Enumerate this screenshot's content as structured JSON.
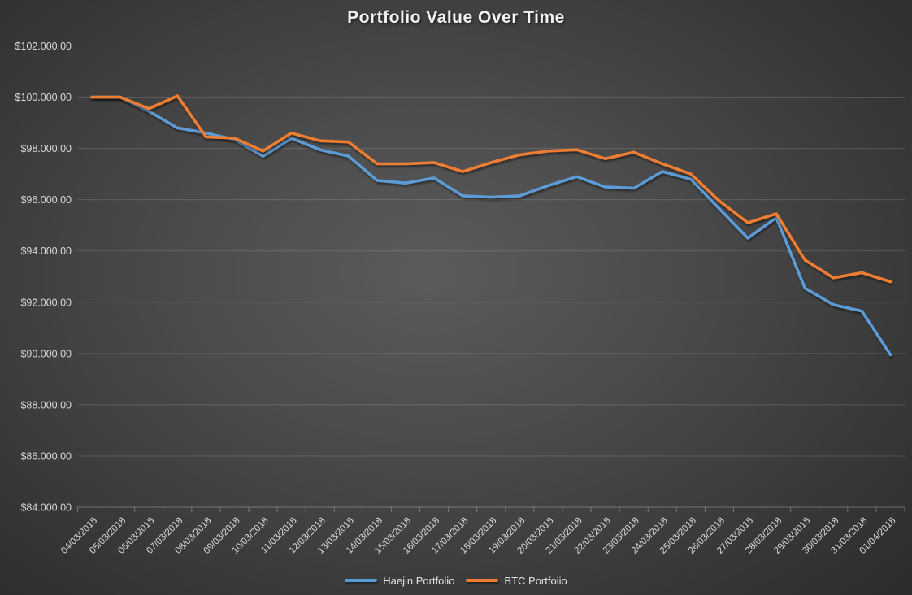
{
  "chart_data": {
    "type": "line",
    "title": "Portfolio Value Over Time",
    "x": [
      "04/03/2018",
      "05/03/2018",
      "06/03/2018",
      "07/03/2018",
      "08/03/2018",
      "09/03/2018",
      "10/03/2018",
      "11/03/2018",
      "12/03/2018",
      "13/03/2018",
      "14/03/2018",
      "15/03/2018",
      "16/03/2018",
      "17/03/2018",
      "18/03/2018",
      "19/03/2018",
      "20/03/2018",
      "21/03/2018",
      "22/03/2018",
      "23/03/2018",
      "24/03/2018",
      "25/03/2018",
      "26/03/2018",
      "27/03/2018",
      "28/03/2018",
      "29/03/2018",
      "30/03/2018",
      "31/03/2018",
      "01/04/2018"
    ],
    "series": [
      {
        "name": "Haejin Portfolio",
        "color": "#5B9BD5",
        "values": [
          100000,
          100000,
          99450,
          98800,
          98600,
          98350,
          97700,
          98400,
          97950,
          97700,
          96750,
          96650,
          96850,
          96150,
          96100,
          96150,
          96550,
          96900,
          96500,
          96450,
          97100,
          96800,
          95650,
          94500,
          95300,
          92550,
          91900,
          91650,
          89950
        ]
      },
      {
        "name": "BTC Portfolio",
        "color": "#ED7D31",
        "values": [
          100000,
          100000,
          99550,
          100050,
          98450,
          98400,
          97900,
          98600,
          98300,
          98250,
          97400,
          97400,
          97450,
          97100,
          97450,
          97750,
          97900,
          97950,
          97600,
          97850,
          97400,
          97000,
          95950,
          95100,
          95450,
          93650,
          92950,
          93150,
          92800
        ]
      }
    ],
    "y_ticks": {
      "values": [
        84000,
        86000,
        88000,
        90000,
        92000,
        94000,
        96000,
        98000,
        100000,
        102000
      ],
      "labels": [
        "$84.000,00",
        "$86.000,00",
        "$88.000,00",
        "$90.000,00",
        "$92.000,00",
        "$94.000,00",
        "$96.000,00",
        "$98.000,00",
        "$100.000,00",
        "$102.000,00"
      ]
    },
    "ylim": [
      84000,
      102000
    ],
    "xlabel": "",
    "ylabel": "",
    "grid": true,
    "legend_position": "bottom",
    "colors": {
      "axis_text": "#d9d9d9",
      "title_text": "#f2f2f2",
      "gridline": "#ffffff"
    }
  }
}
